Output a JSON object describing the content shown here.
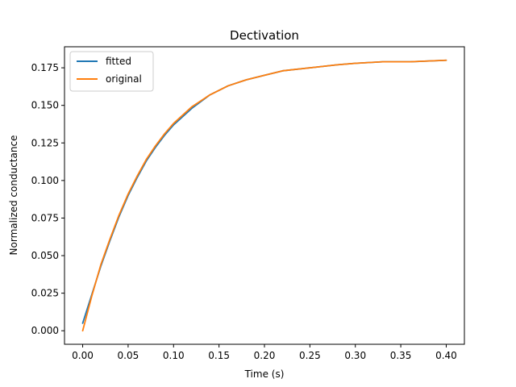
{
  "chart_data": {
    "type": "line",
    "title": "Dectivation",
    "xlabel": "Time (s)",
    "ylabel": "Normalized conductance",
    "xlim": [
      -0.02,
      0.42
    ],
    "ylim": [
      -0.009,
      0.189
    ],
    "xticks": [
      0.0,
      0.05,
      0.1,
      0.15,
      0.2,
      0.25,
      0.3,
      0.35,
      0.4
    ],
    "xtick_labels": [
      "0.00",
      "0.05",
      "0.10",
      "0.15",
      "0.20",
      "0.25",
      "0.30",
      "0.35",
      "0.40"
    ],
    "yticks": [
      0.0,
      0.025,
      0.05,
      0.075,
      0.1,
      0.125,
      0.15,
      0.175
    ],
    "ytick_labels": [
      "0.000",
      "0.025",
      "0.050",
      "0.075",
      "0.100",
      "0.125",
      "0.150",
      "0.175"
    ],
    "grid": false,
    "legend_position": "top-left",
    "x": [
      0.0,
      0.01,
      0.02,
      0.03,
      0.04,
      0.05,
      0.06,
      0.07,
      0.08,
      0.09,
      0.1,
      0.12,
      0.14,
      0.16,
      0.18,
      0.2,
      0.22,
      0.25,
      0.28,
      0.3,
      0.33,
      0.36,
      0.4
    ],
    "series": [
      {
        "name": "fitted",
        "color": "#1f77b4",
        "values": [
          0.005,
          0.024,
          0.043,
          0.06,
          0.076,
          0.09,
          0.102,
          0.113,
          0.122,
          0.13,
          0.137,
          0.148,
          0.157,
          0.163,
          0.167,
          0.17,
          0.173,
          0.175,
          0.177,
          0.178,
          0.179,
          0.179,
          0.18
        ]
      },
      {
        "name": "original",
        "color": "#ff7f0e",
        "values": [
          0.0,
          0.023,
          0.044,
          0.061,
          0.077,
          0.091,
          0.103,
          0.114,
          0.123,
          0.131,
          0.138,
          0.149,
          0.157,
          0.163,
          0.167,
          0.17,
          0.173,
          0.175,
          0.177,
          0.178,
          0.179,
          0.179,
          0.18
        ]
      }
    ]
  }
}
